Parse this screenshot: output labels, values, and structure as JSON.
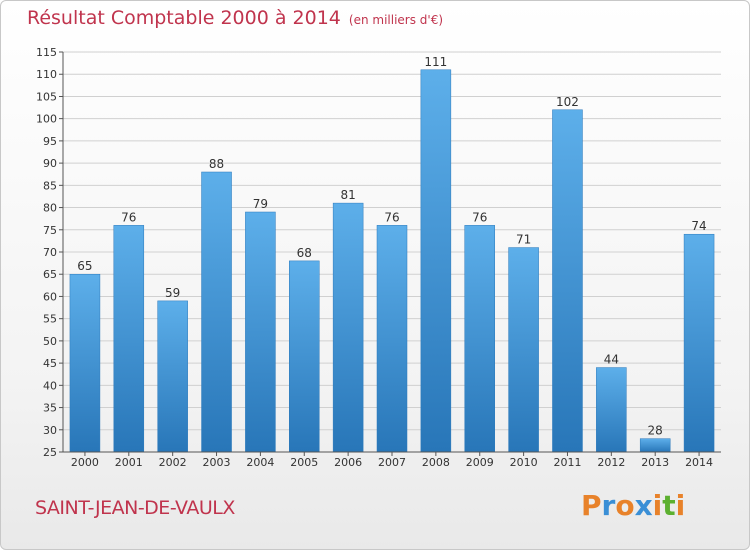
{
  "header": {
    "title": "Résultat Comptable 2000 à 2014",
    "unit": "(en milliers d'€)"
  },
  "footer": {
    "place": "SAINT-JEAN-DE-VAULX",
    "logo_text": "Proxiti"
  },
  "colors": {
    "title": "#c0344d",
    "bar_top": "#5dafea",
    "bar_bottom": "#2876b8",
    "grid": "#d0d0d0",
    "logo": [
      "#e8822a",
      "#3a8fd6",
      "#e8822a",
      "#3a8fd6",
      "#e8822a",
      "#5cb030",
      "#e8822a"
    ]
  },
  "chart_data": {
    "type": "bar",
    "title": "Résultat Comptable 2000 à 2014",
    "subtitle": "(en milliers d'€)",
    "xlabel": "",
    "ylabel": "",
    "categories": [
      "2000",
      "2001",
      "2002",
      "2003",
      "2004",
      "2005",
      "2006",
      "2007",
      "2008",
      "2009",
      "2010",
      "2011",
      "2012",
      "2013",
      "2014"
    ],
    "values": [
      65,
      76,
      59,
      88,
      79,
      68,
      81,
      76,
      111,
      76,
      71,
      102,
      44,
      28,
      74
    ],
    "ylim": [
      25,
      115
    ],
    "yticks": [
      25,
      30,
      35,
      40,
      45,
      50,
      55,
      60,
      65,
      70,
      75,
      80,
      85,
      90,
      95,
      100,
      105,
      110,
      115
    ],
    "grid": true
  }
}
